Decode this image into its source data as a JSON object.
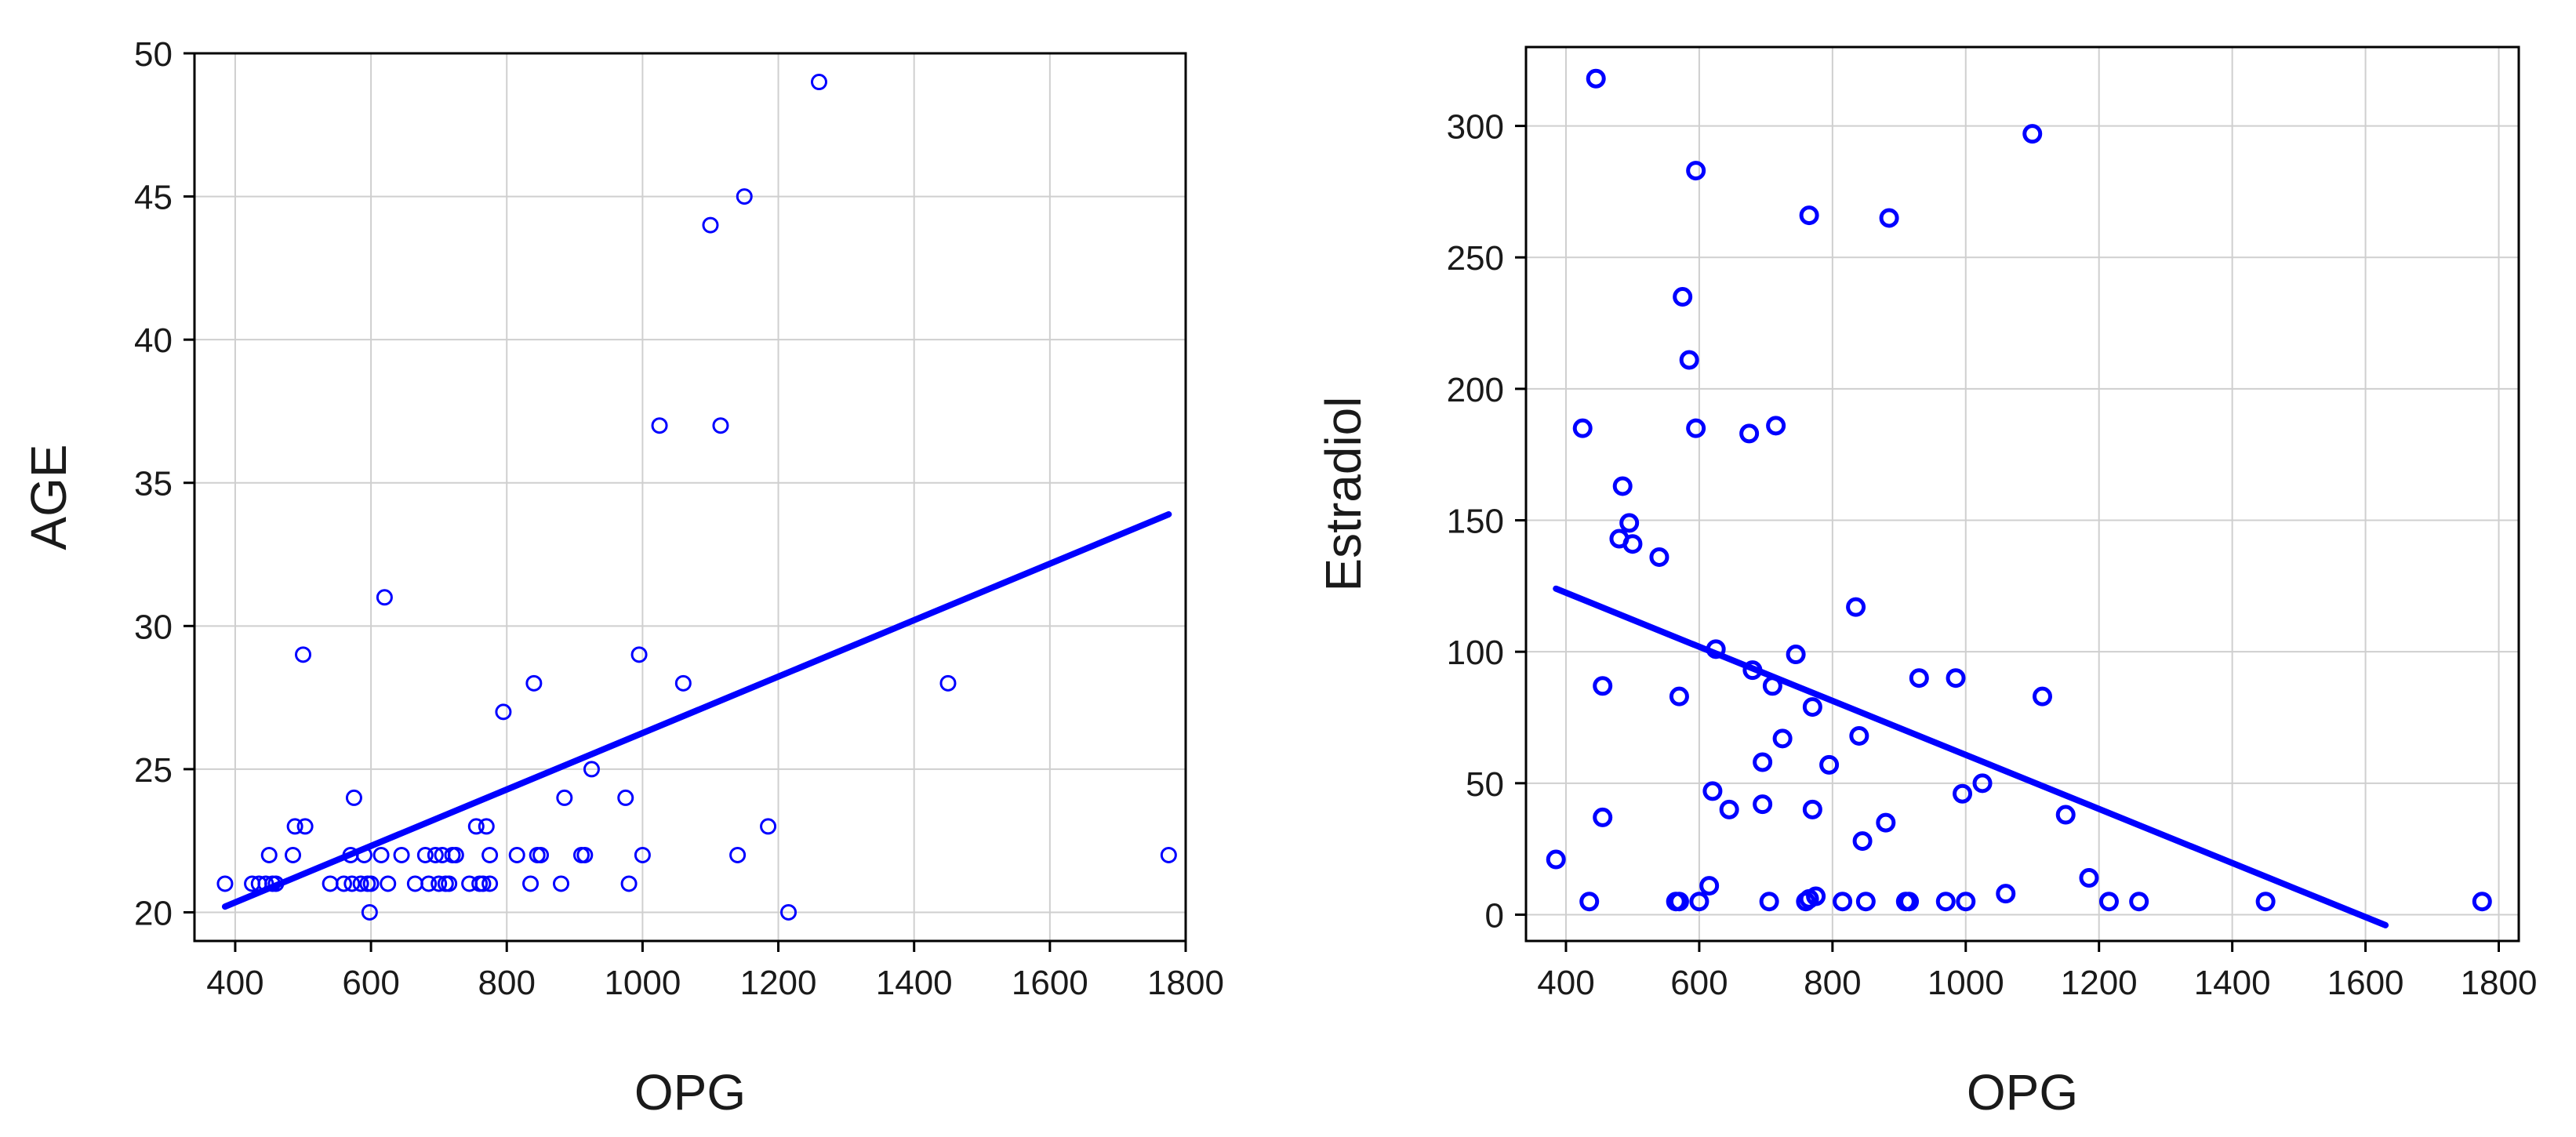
{
  "chart_data": [
    {
      "type": "scatter",
      "xlabel": "OPG",
      "ylabel": "AGE",
      "xlim": [
        340,
        1800
      ],
      "ylim": [
        19,
        50
      ],
      "xticks": [
        400,
        600,
        800,
        1000,
        1200,
        1400,
        1600,
        1800
      ],
      "yticks": [
        20,
        25,
        30,
        35,
        40,
        45,
        50
      ],
      "grid": true,
      "marker_color": "#0000ff",
      "line_color": "#0000ff",
      "trend_line": [
        [
          385,
          20.2
        ],
        [
          1775,
          33.9
        ]
      ],
      "points": [
        [
          385,
          21
        ],
        [
          425,
          21
        ],
        [
          435,
          21
        ],
        [
          445,
          21
        ],
        [
          450,
          22
        ],
        [
          455,
          21
        ],
        [
          460,
          21
        ],
        [
          485,
          22
        ],
        [
          488,
          23
        ],
        [
          500,
          29
        ],
        [
          503,
          23
        ],
        [
          540,
          21
        ],
        [
          560,
          21
        ],
        [
          570,
          22
        ],
        [
          572,
          21
        ],
        [
          575,
          24
        ],
        [
          585,
          21
        ],
        [
          590,
          22
        ],
        [
          595,
          21
        ],
        [
          598,
          20
        ],
        [
          600,
          21
        ],
        [
          615,
          22
        ],
        [
          620,
          31
        ],
        [
          625,
          21
        ],
        [
          645,
          22
        ],
        [
          665,
          21
        ],
        [
          680,
          22
        ],
        [
          685,
          21
        ],
        [
          695,
          22
        ],
        [
          700,
          21
        ],
        [
          705,
          22
        ],
        [
          710,
          21
        ],
        [
          715,
          21
        ],
        [
          720,
          22
        ],
        [
          725,
          22
        ],
        [
          745,
          21
        ],
        [
          755,
          23
        ],
        [
          760,
          21
        ],
        [
          765,
          21
        ],
        [
          770,
          23
        ],
        [
          775,
          21
        ],
        [
          775,
          22
        ],
        [
          795,
          27
        ],
        [
          815,
          22
        ],
        [
          835,
          21
        ],
        [
          840,
          28
        ],
        [
          845,
          22
        ],
        [
          850,
          22
        ],
        [
          880,
          21
        ],
        [
          885,
          24
        ],
        [
          910,
          22
        ],
        [
          915,
          22
        ],
        [
          925,
          25
        ],
        [
          975,
          24
        ],
        [
          980,
          21
        ],
        [
          995,
          29
        ],
        [
          1000,
          22
        ],
        [
          1025,
          37
        ],
        [
          1060,
          28
        ],
        [
          1100,
          44
        ],
        [
          1115,
          37
        ],
        [
          1140,
          22
        ],
        [
          1150,
          45
        ],
        [
          1185,
          23
        ],
        [
          1215,
          20
        ],
        [
          1260,
          49
        ],
        [
          1450,
          28
        ],
        [
          1775,
          22
        ]
      ]
    },
    {
      "type": "scatter",
      "xlabel": "OPG",
      "ylabel": "Estradiol",
      "xlim": [
        340,
        1830
      ],
      "ylim": [
        -10,
        330
      ],
      "xticks": [
        400,
        600,
        800,
        1000,
        1200,
        1400,
        1600,
        1800
      ],
      "yticks": [
        0,
        50,
        100,
        150,
        200,
        250,
        300
      ],
      "grid": true,
      "marker_color": "#0000ff",
      "line_color": "#0000ff",
      "trend_line": [
        [
          385,
          124
        ],
        [
          1630,
          -4
        ]
      ],
      "points": [
        [
          385,
          21
        ],
        [
          425,
          185
        ],
        [
          435,
          5
        ],
        [
          445,
          318
        ],
        [
          455,
          37
        ],
        [
          455,
          87
        ],
        [
          480,
          143
        ],
        [
          485,
          163
        ],
        [
          495,
          149
        ],
        [
          500,
          141
        ],
        [
          540,
          136
        ],
        [
          565,
          5
        ],
        [
          570,
          5
        ],
        [
          570,
          83
        ],
        [
          575,
          235
        ],
        [
          585,
          211
        ],
        [
          595,
          283
        ],
        [
          595,
          185
        ],
        [
          600,
          5
        ],
        [
          615,
          11
        ],
        [
          620,
          47
        ],
        [
          625,
          101
        ],
        [
          645,
          40
        ],
        [
          675,
          183
        ],
        [
          680,
          93
        ],
        [
          695,
          42
        ],
        [
          695,
          58
        ],
        [
          705,
          5
        ],
        [
          710,
          87
        ],
        [
          715,
          186
        ],
        [
          725,
          67
        ],
        [
          745,
          99
        ],
        [
          760,
          5
        ],
        [
          765,
          6
        ],
        [
          765,
          266
        ],
        [
          770,
          40
        ],
        [
          770,
          79
        ],
        [
          775,
          7
        ],
        [
          795,
          57
        ],
        [
          815,
          5
        ],
        [
          835,
          117
        ],
        [
          840,
          68
        ],
        [
          845,
          28
        ],
        [
          850,
          5
        ],
        [
          880,
          35
        ],
        [
          885,
          265
        ],
        [
          910,
          5
        ],
        [
          915,
          5
        ],
        [
          930,
          90
        ],
        [
          970,
          5
        ],
        [
          985,
          90
        ],
        [
          995,
          46
        ],
        [
          1000,
          5
        ],
        [
          1025,
          50
        ],
        [
          1060,
          8
        ],
        [
          1100,
          297
        ],
        [
          1115,
          83
        ],
        [
          1150,
          38
        ],
        [
          1185,
          14
        ],
        [
          1215,
          5
        ],
        [
          1260,
          5
        ],
        [
          1450,
          5
        ],
        [
          1775,
          5
        ]
      ]
    }
  ]
}
